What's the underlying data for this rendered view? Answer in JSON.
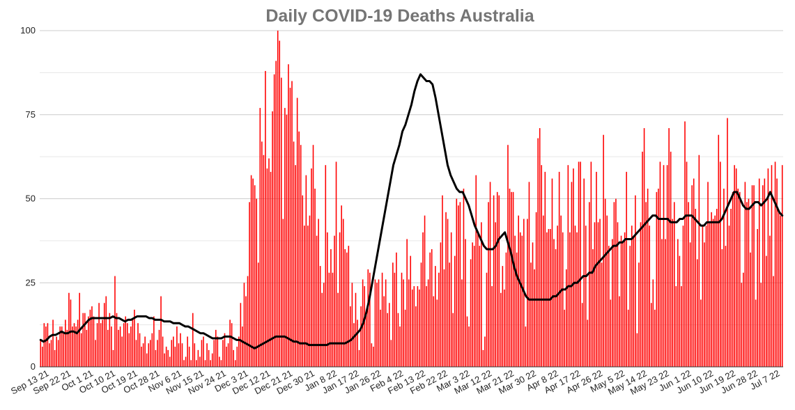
{
  "chart_data": {
    "type": "bar",
    "title": "Daily COVID-19 Deaths Australia",
    "xlabel": "",
    "ylabel": "",
    "ylim": [
      0,
      100
    ],
    "yticks": [
      0,
      25,
      50,
      75,
      100
    ],
    "grid": true,
    "legend": "none",
    "x_tick_labels": [
      "Sep 13 21",
      "Sep 22 21",
      "Oct 1 21",
      "Oct 10 21",
      "Oct 19 21",
      "Oct 28 21",
      "Nov 6 21",
      "Nov 15 21",
      "Nov 24 21",
      "Dec 3 21",
      "Dec 12 21",
      "Dec 21 21",
      "Dec 30 21",
      "Jan 8 22",
      "Jan 17 22",
      "Jan 26 22",
      "Feb 4 22",
      "Feb 13 22",
      "Feb 22 22",
      "Mar 3 22",
      "Mar 12 22",
      "Mar 21 22",
      "Mar 30 22",
      "Apr 8 22",
      "Apr 17 22",
      "Apr 26 22",
      "May 5 22",
      "May 14 22",
      "May 23 22",
      "Jun 1 22",
      "Jun 10 22",
      "Jun 19 22",
      "Jun 28 22",
      "Jul 7 22"
    ],
    "series": [
      {
        "name": "Daily deaths",
        "kind": "bar",
        "color": "#ff0000",
        "start_date": "Sep 13 21",
        "values": [
          8,
          6,
          13,
          12,
          13,
          7,
          8,
          14,
          5,
          9,
          8,
          12,
          12,
          10,
          14,
          11,
          22,
          20,
          12,
          13,
          12,
          14,
          22,
          10,
          16,
          16,
          11,
          15,
          17,
          18,
          15,
          8,
          13,
          19,
          13,
          14,
          19,
          21,
          11,
          16,
          12,
          5,
          27,
          16,
          11,
          12,
          9,
          13,
          15,
          13,
          10,
          12,
          14,
          17,
          8,
          13,
          10,
          6,
          7,
          9,
          4,
          7,
          8,
          10,
          15,
          5,
          8,
          11,
          21,
          9,
          4,
          6,
          5,
          3,
          8,
          9,
          6,
          12,
          7,
          10,
          7,
          2,
          3,
          9,
          6,
          2,
          16,
          7,
          2,
          5,
          3,
          8,
          9,
          2,
          7,
          5,
          2,
          4,
          8,
          11,
          9,
          3,
          2,
          8,
          10,
          6,
          7,
          14,
          13,
          5,
          2,
          6,
          9,
          19,
          12,
          25,
          21,
          27,
          49,
          57,
          56,
          54,
          50,
          31,
          77,
          67,
          63,
          88,
          59,
          62,
          58,
          76,
          87,
          91,
          101,
          97,
          86,
          44,
          77,
          75,
          90,
          83,
          85,
          67,
          60,
          80,
          70,
          66,
          51,
          42,
          57,
          42,
          45,
          59,
          66,
          53,
          39,
          44,
          30,
          22,
          25,
          60,
          40,
          28,
          35,
          28,
          39,
          61,
          22,
          40,
          48,
          44,
          35,
          34,
          36,
          18,
          25,
          13,
          22,
          14,
          5,
          18,
          26,
          24,
          17,
          29,
          28,
          7,
          6,
          26,
          25,
          26,
          17,
          28,
          21,
          26,
          16,
          19,
          8,
          31,
          28,
          34,
          16,
          12,
          28,
          26,
          17,
          38,
          26,
          33,
          23,
          24,
          18,
          24,
          23,
          31,
          40,
          45,
          24,
          26,
          34,
          35,
          21,
          30,
          20,
          28,
          37,
          51,
          29,
          46,
          44,
          31,
          40,
          16,
          33,
          50,
          48,
          49,
          26,
          53,
          38,
          15,
          12,
          32,
          37,
          36,
          57,
          40,
          36,
          43,
          5,
          9,
          28,
          49,
          55,
          24,
          51,
          43,
          52,
          51,
          22,
          30,
          23,
          34,
          66,
          53,
          52,
          52,
          39,
          34,
          45,
          40,
          39,
          44,
          12,
          44,
          55,
          31,
          37,
          29,
          46,
          68,
          71,
          60,
          45,
          58,
          40,
          41,
          41,
          56,
          38,
          35,
          42,
          58,
          45,
          40,
          17,
          29,
          60,
          40,
          55,
          59,
          42,
          40,
          61,
          61,
          19,
          56,
          42,
          14,
          49,
          61,
          35,
          43,
          58,
          43,
          44,
          31,
          69,
          50,
          45,
          36,
          20,
          38,
          49,
          50,
          43,
          21,
          39,
          37,
          40,
          58,
          17,
          36,
          42,
          39,
          51,
          10,
          31,
          43,
          64,
          71,
          49,
          53,
          42,
          19,
          26,
          17,
          52,
          53,
          61,
          38,
          60,
          38,
          60,
          71,
          64,
          44,
          49,
          24,
          38,
          33,
          24,
          42,
          73,
          61,
          49,
          37,
          54,
          56,
          47,
          32,
          63,
          20,
          42,
          37,
          42,
          55,
          43,
          46,
          44,
          45,
          47,
          69,
          61,
          35,
          53,
          36,
          74,
          42,
          47,
          52,
          60,
          59,
          53,
          52,
          25,
          28,
          55,
          49,
          50,
          34,
          54,
          54,
          20,
          41,
          56,
          25,
          54,
          56,
          33,
          59,
          39,
          60,
          27,
          61,
          56,
          46,
          45,
          60
        ]
      },
      {
        "name": "7-day average",
        "kind": "line",
        "color": "#000000",
        "values": [
          8,
          7.5,
          8,
          9,
          9.5,
          9.5,
          10,
          10.5,
          10,
          10,
          10.5,
          10.5,
          10,
          11,
          12,
          13,
          14,
          14.5,
          14.5,
          14.5,
          14.5,
          14.5,
          14.5,
          14.5,
          15,
          14.5,
          14.5,
          14,
          13.5,
          14,
          14,
          14.5,
          15,
          15,
          15,
          15,
          14.5,
          14.5,
          14,
          14,
          14,
          13.5,
          13.5,
          13.5,
          13,
          13,
          13,
          12.5,
          12,
          12,
          11.5,
          11,
          10.5,
          10,
          10,
          9.5,
          9,
          8.5,
          8.5,
          8.5,
          8.5,
          9,
          9,
          9,
          8.5,
          8,
          8,
          7.5,
          7,
          6.5,
          6,
          5.5,
          6,
          6.5,
          7,
          7.5,
          8,
          8.5,
          9,
          9,
          9,
          9,
          8.5,
          8,
          7.5,
          7.5,
          7,
          7,
          7,
          6.5,
          6.5,
          6.5,
          6.5,
          6.5,
          6.5,
          6.5,
          7,
          7,
          7,
          7,
          7,
          7,
          7.5,
          8,
          9,
          10,
          11,
          13,
          16,
          20,
          25,
          30,
          35,
          40,
          45,
          50,
          55,
          60,
          63,
          66,
          70,
          72,
          75,
          78,
          82,
          85,
          87,
          86,
          85,
          85,
          84,
          80,
          75,
          70,
          65,
          60,
          57,
          55,
          53,
          52,
          52,
          50,
          48,
          45,
          42,
          40,
          38,
          36,
          35,
          35,
          35,
          36,
          38,
          39,
          40,
          37,
          34,
          30,
          27,
          25,
          23,
          21,
          20,
          20,
          20,
          20,
          20,
          20,
          20,
          20,
          21,
          21,
          22,
          23,
          23,
          24,
          24,
          25,
          25,
          26,
          27,
          27,
          28,
          28,
          30,
          31,
          32,
          33,
          34,
          35,
          36,
          36,
          37,
          37,
          38,
          38,
          38,
          39,
          40,
          41,
          42,
          43,
          44,
          45,
          45,
          44,
          44,
          44,
          44,
          43,
          43,
          43,
          44,
          44,
          45,
          45,
          45,
          44,
          43,
          42,
          42,
          43,
          43,
          43,
          43,
          43,
          44,
          46,
          48,
          50,
          52,
          52,
          50,
          48,
          47,
          47,
          48,
          49,
          49,
          48,
          49,
          50,
          52,
          50,
          48,
          46,
          45
        ]
      }
    ]
  }
}
